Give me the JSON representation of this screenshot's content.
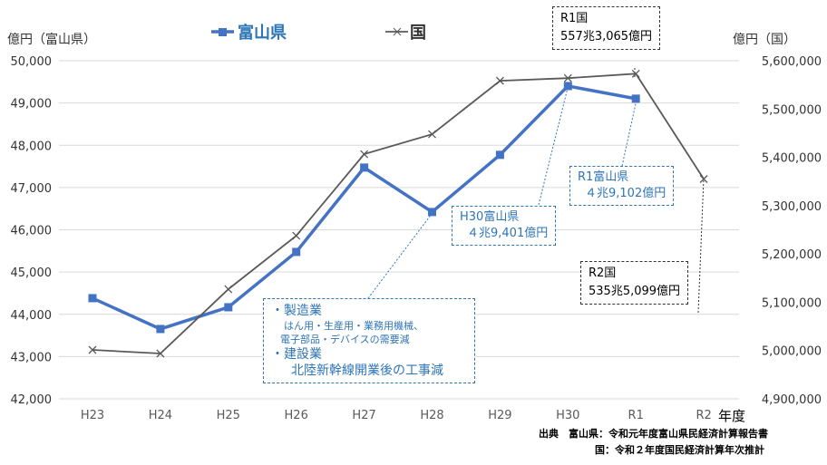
{
  "chart_data": {
    "type": "line",
    "categories": [
      "H23",
      "H24",
      "H25",
      "H26",
      "H27",
      "H28",
      "H29",
      "H30",
      "R1",
      "R2"
    ],
    "xlabel": "年度",
    "series": [
      {
        "name": "富山県",
        "axis": "left",
        "color": "#4472c4",
        "marker": "square",
        "values": [
          44382,
          43652,
          44167,
          45476,
          47472,
          46421,
          47773,
          49401,
          49102,
          null
        ]
      },
      {
        "name": "国",
        "axis": "right",
        "color": "#595959",
        "marker": "x",
        "values": [
          5001300,
          4993800,
          5127000,
          5237700,
          5406600,
          5447800,
          5558500,
          5564000,
          5573065,
          5355099
        ]
      }
    ],
    "y_left": {
      "label": "億円（富山県）",
      "ylim": [
        42000,
        50000
      ],
      "ticks": [
        "42,000",
        "43,000",
        "44,000",
        "45,000",
        "46,000",
        "47,000",
        "48,000",
        "49,000",
        "50,000"
      ]
    },
    "y_right": {
      "label": "億円（国）",
      "ylim": [
        4900000,
        5600000
      ],
      "ticks": [
        "4,900,000",
        "5,000,000",
        "5,100,000",
        "5,200,000",
        "5,300,000",
        "5,400,000",
        "5,500,000",
        "5,600,000"
      ]
    },
    "grid": true,
    "legend": "top"
  },
  "annotations": {
    "r1_national": [
      "R1国",
      "557兆3,065億円"
    ],
    "r2_national": [
      "R2国",
      "535兆5,099億円"
    ],
    "h30_toyama": [
      "H30富山県",
      "４兆9,401億円"
    ],
    "r1_toyama": [
      "R1富山県",
      "４兆9,102億円"
    ],
    "factors": {
      "mfg": "・製造業",
      "mfg_detail1": "はん用・生産用・業務用機械、",
      "mfg_detail2": "電子部品・デバイスの需要減",
      "cons": "・建設業",
      "cons_detail": "北陸新幹線開業後の工事減"
    }
  },
  "source": {
    "line1": "出典　富山県：令和元年度富山県民経済計算報告書",
    "line2": "国：令和２年度国民経済計算年次推計"
  }
}
